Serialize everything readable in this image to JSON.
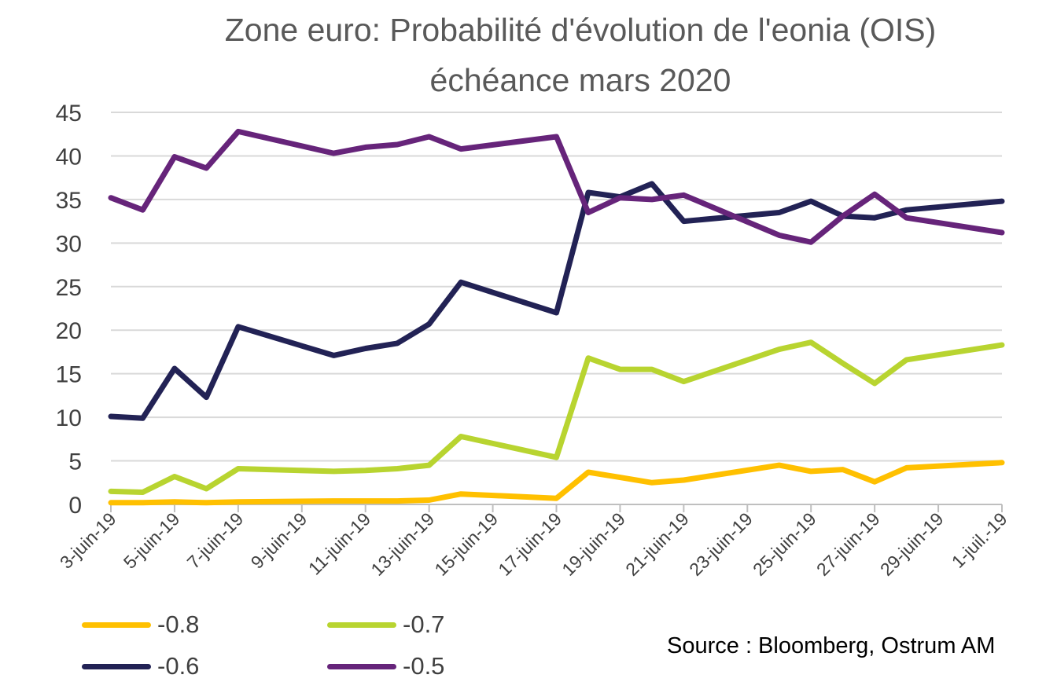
{
  "title_line_1": "Zone euro: Probabilité d'évolution de l'eonia (OIS)",
  "title_line_2": "échéance mars 2020",
  "source": "Source : Bloomberg, Ostrum AM",
  "chart_data": {
    "type": "line",
    "title": "Zone euro: Probabilité d'évolution de l'eonia (OIS) échéance mars 2020",
    "xlabel": "",
    "ylabel": "",
    "ylim": [
      0,
      45
    ],
    "yticks": [
      0,
      5,
      10,
      15,
      20,
      25,
      30,
      35,
      40,
      45
    ],
    "grid": true,
    "legend_position": "bottom",
    "x_tick_labels": [
      "3-juin-19",
      "5-juin-19",
      "7-juin-19",
      "9-juin-19",
      "11-juin-19",
      "13-juin-19",
      "15-juin-19",
      "17-juin-19",
      "19-juin-19",
      "21-juin-19",
      "23-juin-19",
      "25-juin-19",
      "27-juin-19",
      "29-juin-19",
      "1-juil.-19"
    ],
    "x": [
      "2019-06-03",
      "2019-06-04",
      "2019-06-05",
      "2019-06-06",
      "2019-06-07",
      "2019-06-10",
      "2019-06-11",
      "2019-06-12",
      "2019-06-13",
      "2019-06-14",
      "2019-06-17",
      "2019-06-18",
      "2019-06-19",
      "2019-06-20",
      "2019-06-21",
      "2019-06-24",
      "2019-06-25",
      "2019-06-26",
      "2019-06-27",
      "2019-06-28",
      "2019-07-01"
    ],
    "series": [
      {
        "name": "-0.8",
        "color": "#FFC000",
        "values": [
          0.2,
          0.2,
          0.3,
          0.2,
          0.3,
          0.4,
          0.4,
          0.4,
          0.5,
          1.2,
          0.7,
          3.7,
          3.1,
          2.5,
          2.8,
          4.5,
          3.8,
          4.0,
          2.6,
          4.2,
          4.8
        ]
      },
      {
        "name": "-0.7",
        "color": "#B8D430",
        "values": [
          1.5,
          1.4,
          3.2,
          1.8,
          4.1,
          3.8,
          3.9,
          4.1,
          4.5,
          7.8,
          5.4,
          16.8,
          15.5,
          15.5,
          14.1,
          17.8,
          18.6,
          16.2,
          13.9,
          16.6,
          18.3
        ]
      },
      {
        "name": "-0.6",
        "color": "#222255",
        "values": [
          10.1,
          9.9,
          15.6,
          12.3,
          20.4,
          17.1,
          17.9,
          18.5,
          20.7,
          25.5,
          22.0,
          35.8,
          35.3,
          36.8,
          32.5,
          33.5,
          34.8,
          33.1,
          32.9,
          33.8,
          34.8
        ]
      },
      {
        "name": "-0.5",
        "color": "#66247A",
        "values": [
          35.2,
          33.8,
          39.9,
          38.6,
          42.8,
          40.3,
          41.0,
          41.3,
          42.2,
          40.8,
          42.2,
          33.5,
          35.2,
          35.0,
          35.5,
          30.9,
          30.1,
          33.1,
          35.6,
          32.9,
          31.2
        ]
      }
    ]
  }
}
